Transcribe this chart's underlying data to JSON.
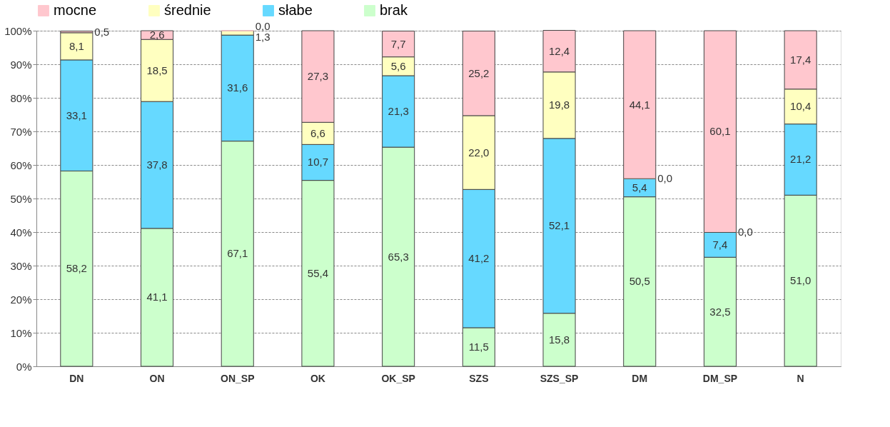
{
  "chart_data": {
    "type": "bar",
    "stacked": true,
    "categories": [
      "DN",
      "ON",
      "ON_SP",
      "OK",
      "OK_SP",
      "SZS",
      "SZS_SP",
      "DM",
      "DM_SP",
      "N"
    ],
    "series": [
      {
        "name": "brak",
        "color": "#ccffcc",
        "values": [
          58.2,
          41.1,
          67.1,
          55.4,
          65.3,
          11.5,
          15.8,
          50.5,
          32.5,
          51.0
        ],
        "value_labels": [
          "58,2",
          "41,1",
          "67,1",
          "55,4",
          "65,3",
          "11,5",
          "15,8",
          "50,5",
          "32,5",
          "51,0"
        ]
      },
      {
        "name": "słabe",
        "color": "#66d9ff",
        "values": [
          33.1,
          37.8,
          31.6,
          10.7,
          21.3,
          41.2,
          52.1,
          5.4,
          7.4,
          21.2
        ],
        "value_labels": [
          "33,1",
          "37,8",
          "31,6",
          "10,7",
          "21,3",
          "41,2",
          "52,1",
          "5,4",
          "7,4",
          "21,2"
        ]
      },
      {
        "name": "średnie",
        "color": "#ffffc0",
        "values": [
          8.1,
          18.5,
          1.3,
          6.6,
          5.6,
          22.0,
          19.8,
          0.0,
          0.0,
          10.4
        ],
        "value_labels": [
          "8,1",
          "18,5",
          "1,3",
          "6,6",
          "5,6",
          "22,0",
          "19,8",
          "0,0",
          "0,0",
          "10,4"
        ]
      },
      {
        "name": "mocne",
        "color": "#ffc7ce",
        "values": [
          0.5,
          2.6,
          0.0,
          27.3,
          7.7,
          25.2,
          12.4,
          44.1,
          60.1,
          17.4
        ],
        "value_labels": [
          "0,5",
          "2,6",
          "0,0",
          "27,3",
          "7,7",
          "25,2",
          "12,4",
          "44,1",
          "60,1",
          "17,4"
        ]
      }
    ],
    "ylim": [
      0,
      100
    ],
    "yticks": [
      {
        "value": 0,
        "label": "0%"
      },
      {
        "value": 10,
        "label": "10%"
      },
      {
        "value": 20,
        "label": "20%"
      },
      {
        "value": 30,
        "label": "30%"
      },
      {
        "value": 40,
        "label": "40%"
      },
      {
        "value": 50,
        "label": "50%"
      },
      {
        "value": 60,
        "label": "60%"
      },
      {
        "value": 70,
        "label": "70%"
      },
      {
        "value": 80,
        "label": "80%"
      },
      {
        "value": 90,
        "label": "90%"
      },
      {
        "value": 100,
        "label": "100%"
      }
    ],
    "grid": "y",
    "legend": "top"
  }
}
